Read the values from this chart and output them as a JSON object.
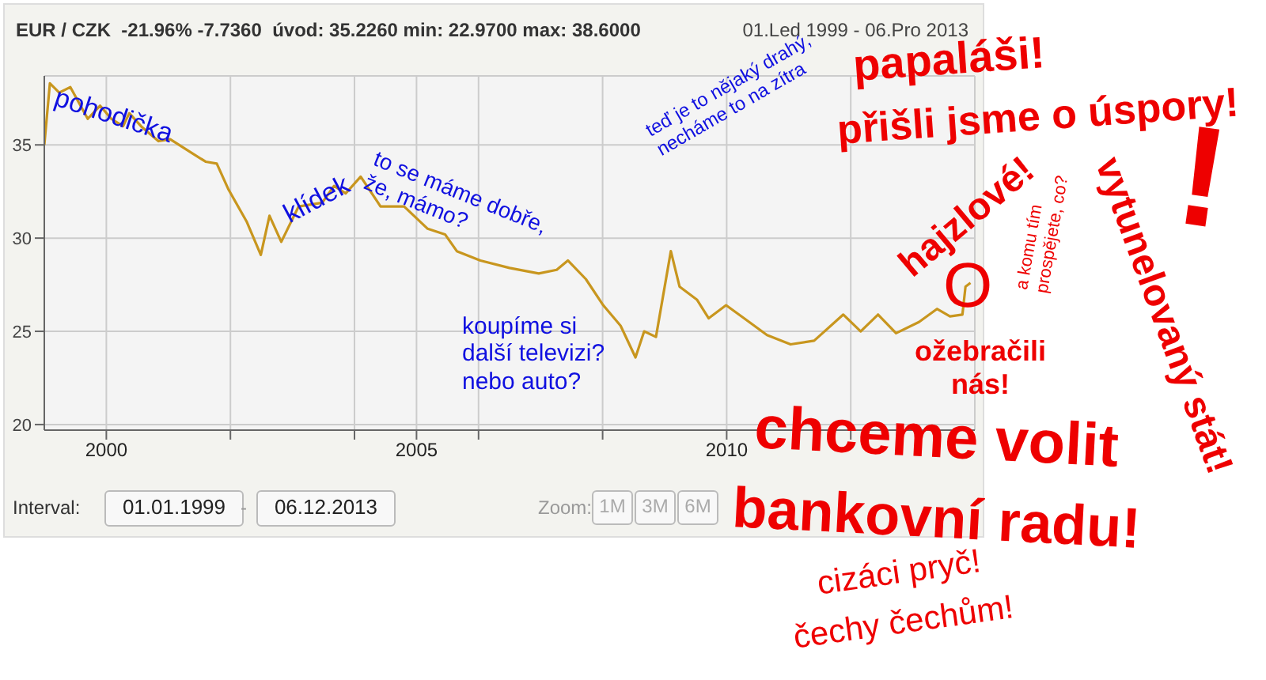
{
  "chart_data": {
    "type": "line",
    "title": "EUR / CZK  -21.96% -7.7360  úvod: 35.2260 min: 22.9700 max: 38.6000",
    "subtitle": "01.Led 1999 - 06.Pro 2013",
    "x": [
      1999.0,
      1999.09,
      1999.24,
      1999.42,
      1999.7,
      1999.9,
      2000.08,
      2000.27,
      2000.37,
      2000.56,
      2000.84,
      2001.03,
      2001.41,
      2001.6,
      2001.78,
      2001.97,
      2002.26,
      2002.49,
      2002.63,
      2002.82,
      2003.1,
      2003.48,
      2003.67,
      2003.86,
      2004.1,
      2004.24,
      2004.42,
      2004.8,
      2005.18,
      2005.46,
      2005.65,
      2006.03,
      2006.5,
      2006.97,
      2007.26,
      2007.44,
      2007.73,
      2008.01,
      2008.29,
      2008.53,
      2008.67,
      2008.86,
      2009.1,
      2009.24,
      2009.52,
      2009.71,
      2009.99,
      2010.28,
      2010.65,
      2011.03,
      2011.41,
      2011.88,
      2012.16,
      2012.44,
      2012.73,
      2013.1,
      2013.39,
      2013.6,
      2013.8,
      2013.85,
      2013.93
    ],
    "values": [
      35.0,
      38.3,
      37.8,
      38.1,
      36.4,
      37.1,
      36.4,
      36.0,
      36.7,
      36.0,
      35.2,
      35.3,
      34.5,
      34.1,
      34.0,
      32.6,
      30.9,
      29.1,
      31.2,
      29.8,
      31.7,
      31.9,
      32.8,
      32.4,
      33.3,
      32.6,
      31.7,
      31.7,
      30.5,
      30.2,
      29.3,
      28.8,
      28.4,
      28.1,
      28.3,
      28.8,
      27.8,
      26.4,
      25.3,
      23.6,
      25.0,
      24.7,
      29.3,
      27.4,
      26.7,
      25.7,
      26.4,
      25.7,
      24.8,
      24.3,
      24.5,
      25.9,
      25.0,
      25.9,
      24.9,
      25.5,
      26.2,
      25.8,
      25.9,
      27.4,
      27.6
    ],
    "color": "#c8961e",
    "xlim": [
      1999,
      2014
    ],
    "xticks": [
      {
        "value": 2000,
        "label": "2000"
      },
      {
        "value": 2002,
        "label": null
      },
      {
        "value": 2004,
        "label": null
      },
      {
        "value": 2005,
        "label": "2005"
      },
      {
        "value": 2006,
        "label": null
      },
      {
        "value": 2008,
        "label": null
      },
      {
        "value": 2010,
        "label": "2010"
      },
      {
        "value": 2012,
        "label": null
      }
    ],
    "ylim": [
      19.7,
      38.7
    ],
    "yticks": [
      20,
      25,
      30,
      35
    ],
    "grid": true,
    "marker": "none",
    "line_style": "solid",
    "annotations": [
      "pohodička",
      "klídek",
      "to se máme dobře, že, mámo?",
      "teď je to nějaký drahý, necháme to na zítra",
      "koupíme si další televizi? nebo auto?",
      "papaláši!",
      "přišli jsme o úspory!",
      "hajzlové!",
      "O",
      "a komu tím prospějete, co?",
      "vytunelovaný stát!",
      "!",
      "ožebračili nás!",
      "chceme volit",
      "bankovní radu!",
      "cizáci pryč!",
      "čechy čechům!",
      "Interval:",
      "01.01.1999",
      "-",
      "06.12.2013",
      "Zoom:",
      "1M",
      "3M",
      "6M"
    ]
  }
}
